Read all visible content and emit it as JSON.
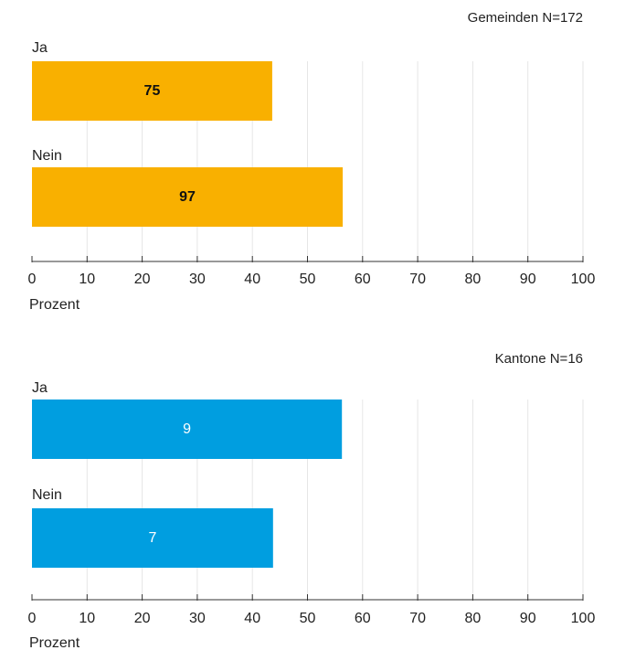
{
  "colors": {
    "gemeinden": "#f9b000",
    "kantone": "#009ee0",
    "grid": "#e6e6e6",
    "axis": "#333333"
  },
  "chart_data": [
    {
      "type": "bar",
      "orientation": "horizontal",
      "note": "Gemeinden N=172",
      "categories": [
        "Ja",
        "Nein"
      ],
      "values": [
        43.6,
        56.4
      ],
      "counts": [
        "75",
        "97"
      ],
      "xlabel": "Prozent",
      "xlim": [
        0,
        100
      ],
      "xticks": [
        "0",
        "10",
        "20",
        "30",
        "40",
        "50",
        "60",
        "70",
        "80",
        "90",
        "100"
      ],
      "grid": true,
      "bar_color": "#f9b000",
      "count_color": "#111111",
      "count_bold": true
    },
    {
      "type": "bar",
      "orientation": "horizontal",
      "note": "Kantone N=16",
      "categories": [
        "Ja",
        "Nein"
      ],
      "values": [
        56.25,
        43.75
      ],
      "counts": [
        "9",
        "7"
      ],
      "xlabel": "Prozent",
      "xlim": [
        0,
        100
      ],
      "xticks": [
        "0",
        "10",
        "20",
        "30",
        "40",
        "50",
        "60",
        "70",
        "80",
        "90",
        "100"
      ],
      "grid": true,
      "bar_color": "#009ee0",
      "count_color": "#ffffff",
      "count_bold": false
    }
  ]
}
